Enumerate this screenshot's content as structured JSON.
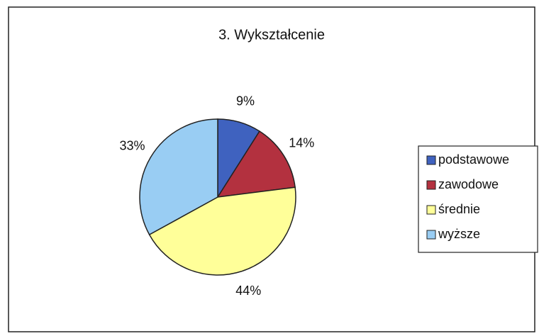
{
  "chart_data": {
    "type": "pie",
    "title": "3. Wykształcenie",
    "categories": [
      "podstawowe",
      "zawodowe",
      "średnie",
      "wyższe"
    ],
    "values": [
      9,
      14,
      44,
      33
    ],
    "value_labels": [
      "9%",
      "14%",
      "44%",
      "33%"
    ],
    "colors": [
      "#3f62bf",
      "#b3313f",
      "#ffff99",
      "#99cdf3"
    ],
    "legend": "right"
  }
}
